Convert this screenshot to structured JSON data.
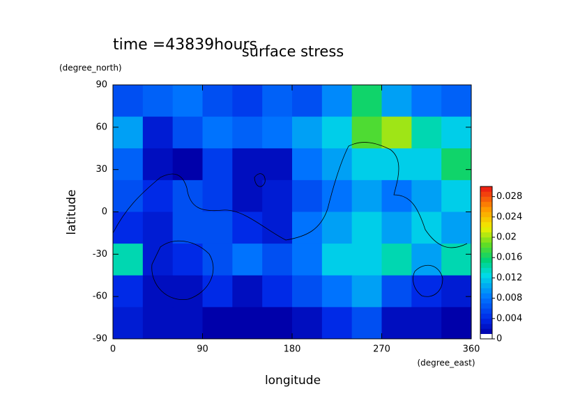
{
  "chart_data": {
    "type": "contour",
    "title": "surface stress",
    "subtitle": "time =43839hours",
    "x_label": "longitude",
    "x_unit": "(degree_east)",
    "y_label": "latitude",
    "y_unit": "(degree_north)",
    "x": [
      15,
      45,
      75,
      105,
      135,
      165,
      195,
      225,
      255,
      285,
      315,
      345
    ],
    "y": [
      78.75,
      56.25,
      33.75,
      11.25,
      -11.25,
      -33.75,
      -56.25,
      -78.75
    ],
    "z": [
      [
        0.006,
        0.007,
        0.008,
        0.006,
        0.005,
        0.007,
        0.006,
        0.009,
        0.016,
        0.01,
        0.008,
        0.007
      ],
      [
        0.01,
        0.003,
        0.006,
        0.008,
        0.007,
        0.008,
        0.01,
        0.012,
        0.018,
        0.02,
        0.014,
        0.012
      ],
      [
        0.007,
        0.002,
        0.001,
        0.005,
        0.002,
        0.002,
        0.008,
        0.01,
        0.012,
        0.012,
        0.012,
        0.016
      ],
      [
        0.006,
        0.004,
        0.006,
        0.005,
        0.002,
        0.003,
        0.006,
        0.008,
        0.01,
        0.008,
        0.01,
        0.012
      ],
      [
        0.004,
        0.003,
        0.006,
        0.006,
        0.004,
        0.003,
        0.008,
        0.01,
        0.012,
        0.01,
        0.012,
        0.01
      ],
      [
        0.014,
        0.003,
        0.004,
        0.006,
        0.008,
        0.006,
        0.008,
        0.012,
        0.012,
        0.014,
        0.01,
        0.014
      ],
      [
        0.004,
        0.002,
        0.002,
        0.004,
        0.002,
        0.004,
        0.006,
        0.008,
        0.01,
        0.006,
        0.004,
        0.003
      ],
      [
        0.003,
        0.002,
        0.002,
        0.001,
        0.001,
        0.001,
        0.002,
        0.004,
        0.006,
        0.002,
        0.002,
        0.001
      ]
    ],
    "xlim": [
      0,
      360
    ],
    "xticks": [
      0,
      90,
      180,
      270,
      360
    ],
    "ylim": [
      -90,
      90
    ],
    "yticks": [
      90,
      60,
      30,
      0,
      -30,
      -60,
      -90
    ],
    "clim": [
      0,
      0.03
    ],
    "cticks": [
      0,
      0.004,
      0.008,
      0.012,
      0.016,
      0.02,
      0.024,
      0.028
    ]
  }
}
